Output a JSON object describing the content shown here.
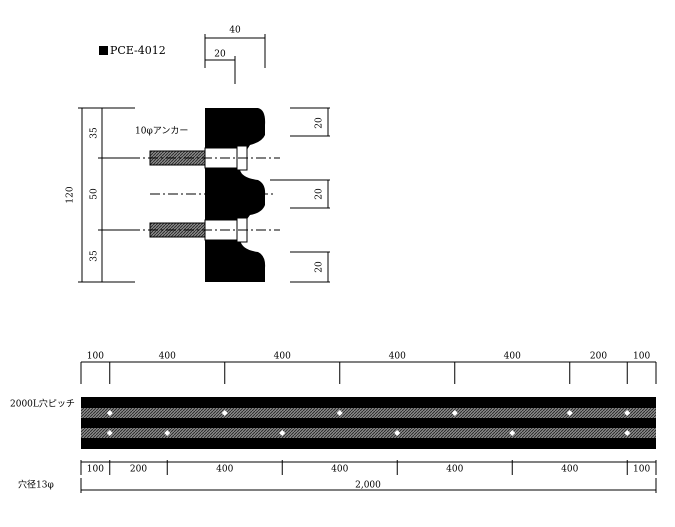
{
  "header": {
    "title": "PCE-4012"
  },
  "section": {
    "top_dims": [
      "40",
      "20"
    ],
    "left_dims": [
      "35",
      "50",
      "35"
    ],
    "total_height": "120",
    "right_dims": [
      "20",
      "20",
      "20"
    ],
    "anchor_label": "10φアンカー"
  },
  "plan": {
    "upper_pitch": [
      100,
      400,
      400,
      400,
      400,
      200,
      100
    ],
    "pitch_label": "2000L穴ピッチ",
    "lower_pitch": [
      100,
      200,
      400,
      400,
      400,
      400,
      100
    ],
    "hole_label": "穴径13φ",
    "total": "2,000"
  }
}
